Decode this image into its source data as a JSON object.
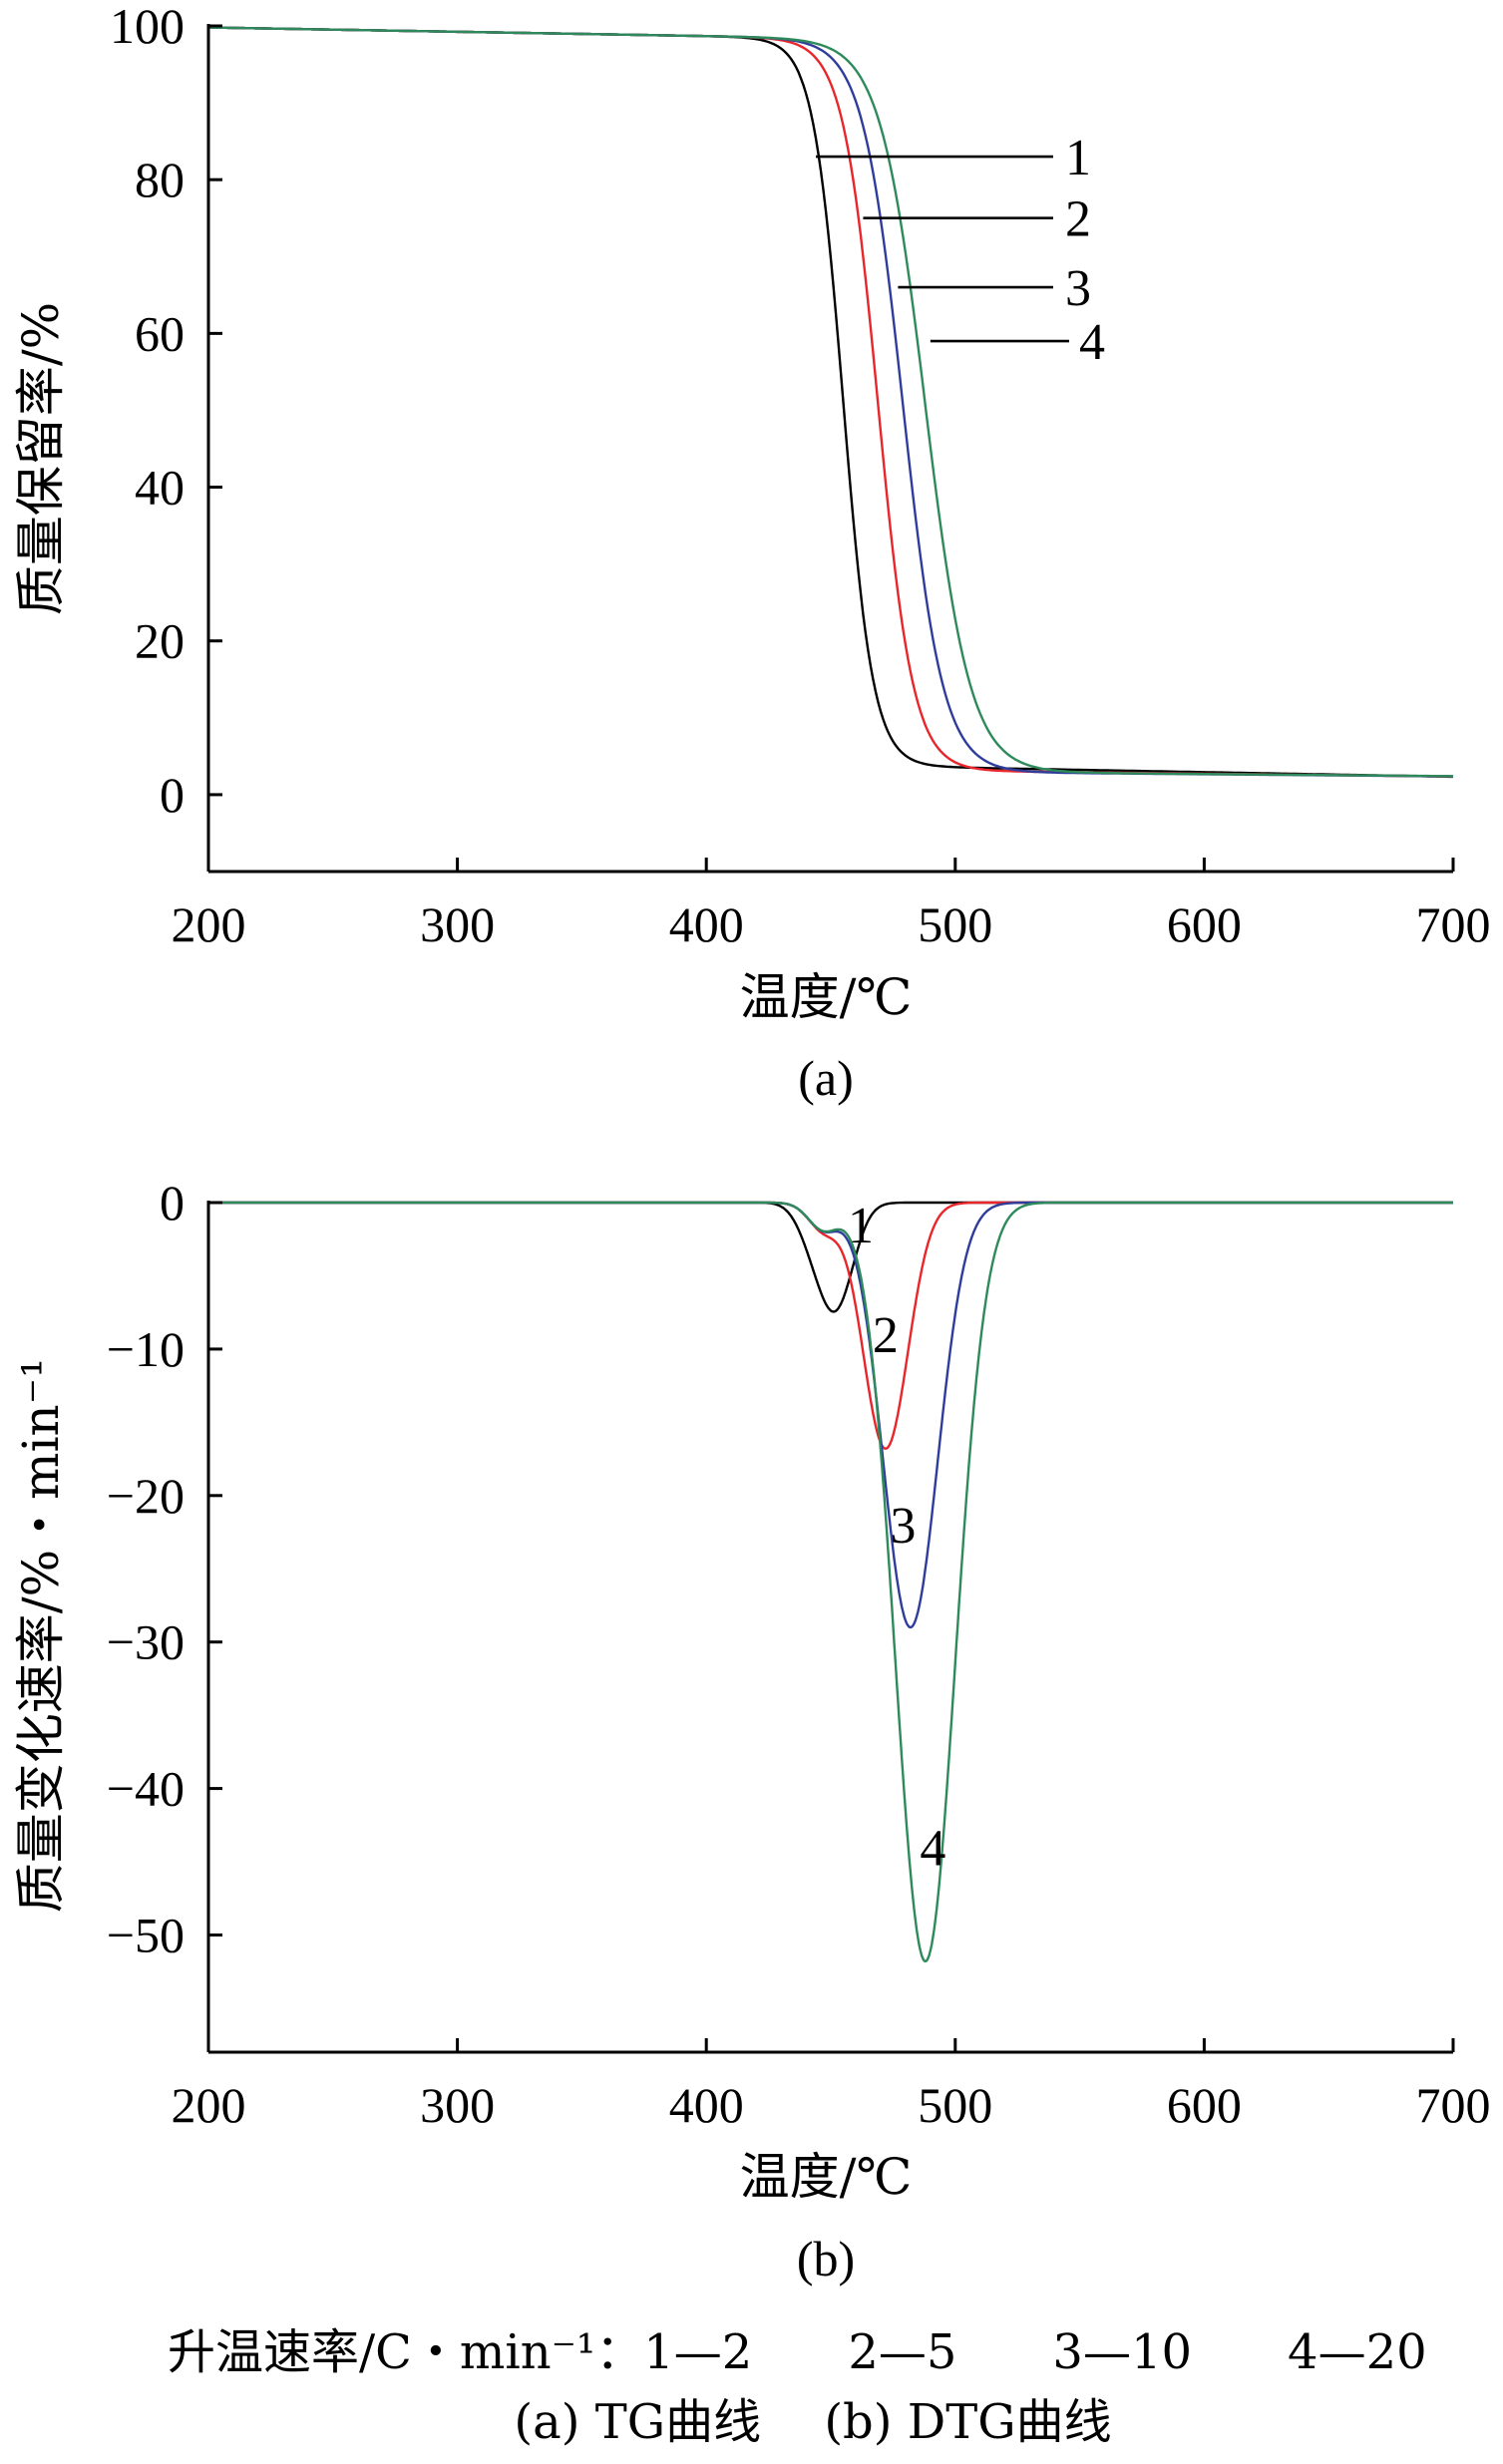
{
  "chart_data": [
    {
      "type": "line",
      "panel": "(a)",
      "xlabel": "温度/℃",
      "ylabel": "质量保留率/%",
      "xlim": [
        200,
        700
      ],
      "ylim": [
        -10,
        100
      ],
      "xticks": [
        200,
        300,
        400,
        500,
        600,
        700
      ],
      "yticks": [
        0,
        20,
        40,
        60,
        80,
        100
      ],
      "grid": false,
      "series": [
        {
          "name": "1",
          "color": "#000000",
          "onset": 455,
          "halfwidth": 6,
          "residue": 3.8
        },
        {
          "name": "2",
          "color": "#e8262b",
          "onset": 469,
          "halfwidth": 7,
          "residue": 3.2
        },
        {
          "name": "3",
          "color": "#2e3d9c",
          "onset": 479,
          "halfwidth": 8,
          "residue": 3.0
        },
        {
          "name": "4",
          "color": "#2e8a5a",
          "onset": 488,
          "halfwidth": 9,
          "residue": 3.0
        }
      ],
      "annotations": [
        {
          "text": "1",
          "x_data": 444,
          "y_data": 83
        },
        {
          "text": "2",
          "x_data": 463,
          "y_data": 75
        },
        {
          "text": "3",
          "x_data": 477,
          "y_data": 66
        },
        {
          "text": "4",
          "x_data": 490,
          "y_data": 59
        }
      ]
    },
    {
      "type": "line",
      "panel": "(b)",
      "xlabel": "温度/℃",
      "ylabel": "质量变化速率/%・min⁻¹",
      "xlim": [
        200,
        700
      ],
      "ylim": [
        -58,
        0
      ],
      "xticks": [
        200,
        300,
        400,
        500,
        600,
        700
      ],
      "yticks": [
        0,
        -10,
        -20,
        -30,
        -40,
        -50
      ],
      "grid": false,
      "series": [
        {
          "name": "1",
          "color": "#000000",
          "peak_x": 455,
          "peak_y": -7,
          "width": 8
        },
        {
          "name": "2",
          "color": "#e8262b",
          "peak_x": 472,
          "peak_y": -16.8,
          "width": 9
        },
        {
          "name": "3",
          "color": "#2e3d9c",
          "peak_x": 482,
          "peak_y": -29,
          "width": 11
        },
        {
          "name": "4",
          "color": "#2e8a5a",
          "peak_x": 488,
          "peak_y": -51.8,
          "width": 12
        }
      ],
      "annotations": [
        {
          "text": "1",
          "x_data": 462,
          "y_data": -1.5
        },
        {
          "text": "2",
          "x_data": 472,
          "y_data": -9
        },
        {
          "text": "3",
          "x_data": 479,
          "y_data": -22
        },
        {
          "text": "4",
          "x_data": 491,
          "y_data": -44
        }
      ]
    }
  ],
  "caption": {
    "line1": "升温速率/C・min⁻¹：1—2　　2—5　　3—10　　4—20",
    "line2": "(a) TG曲线　 (b) DTG曲线"
  }
}
